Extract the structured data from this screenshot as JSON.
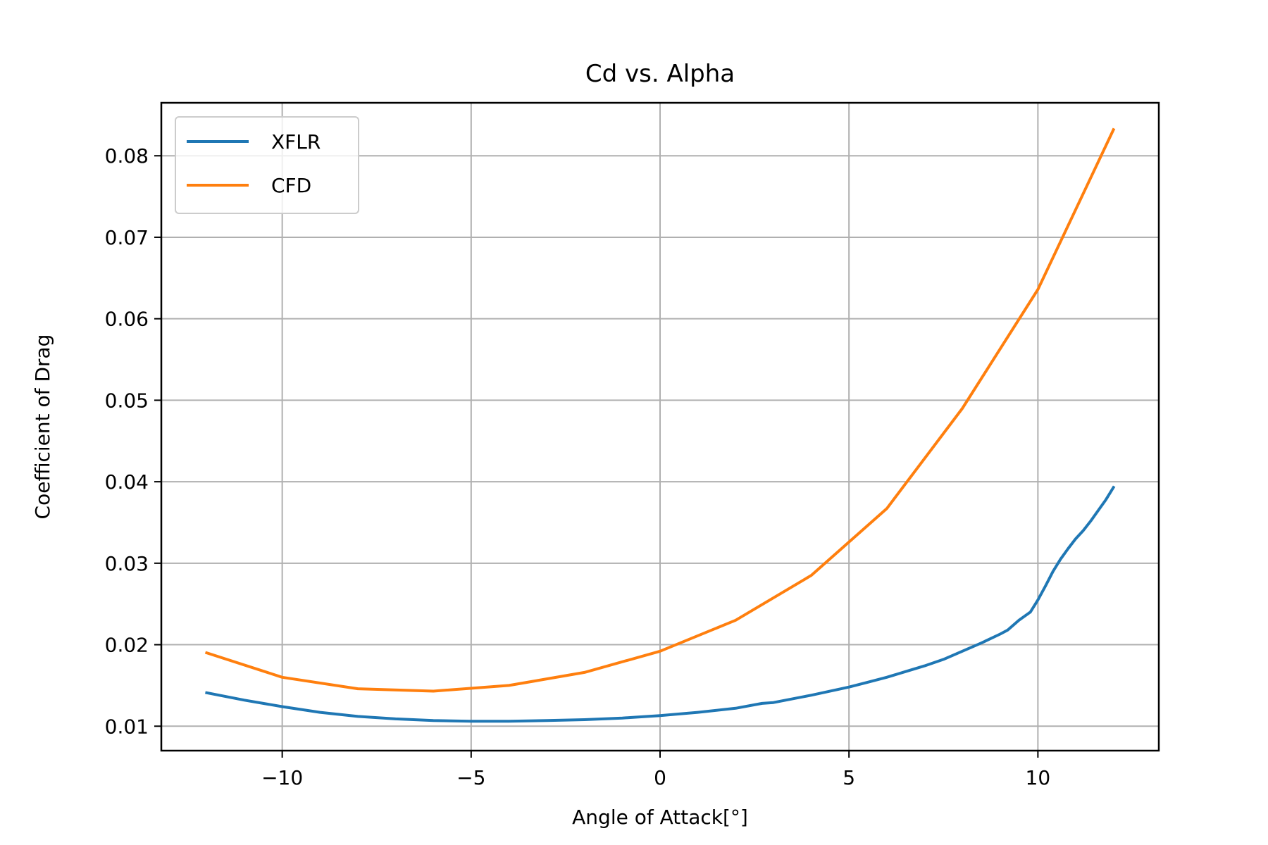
{
  "chart_data": {
    "type": "line",
    "title": "Cd vs. Alpha",
    "xlabel": "Angle of Attack[°]",
    "ylabel": "Coefficient of Drag",
    "xlim": [
      -13.2,
      13.2
    ],
    "ylim": [
      0.007,
      0.0865
    ],
    "xticks": [
      -10,
      -5,
      0,
      5,
      10
    ],
    "xtick_labels": [
      "−10",
      "−5",
      "0",
      "5",
      "10"
    ],
    "yticks": [
      0.01,
      0.02,
      0.03,
      0.04,
      0.05,
      0.06,
      0.07,
      0.08
    ],
    "ytick_labels": [
      "0.01",
      "0.02",
      "0.03",
      "0.04",
      "0.05",
      "0.06",
      "0.07",
      "0.08"
    ],
    "grid": true,
    "legend_position": "top-left",
    "series": [
      {
        "name": "XFLR",
        "color": "#1f77b4",
        "x": [
          -12,
          -11,
          -10,
          -9,
          -8,
          -7,
          -6,
          -5,
          -4,
          -3,
          -2,
          -1,
          0,
          1,
          2,
          2.7,
          3,
          4,
          5,
          5.5,
          6,
          6.5,
          7,
          7.5,
          8,
          8.5,
          9,
          9.2,
          9.5,
          9.8,
          10,
          10.2,
          10.4,
          10.6,
          10.8,
          11,
          11.2,
          11.4,
          11.6,
          11.8,
          12
        ],
        "y": [
          0.0141,
          0.0132,
          0.0124,
          0.0117,
          0.0112,
          0.0109,
          0.0107,
          0.0106,
          0.0106,
          0.0107,
          0.0108,
          0.011,
          0.0113,
          0.0117,
          0.0122,
          0.0128,
          0.0129,
          0.0138,
          0.0148,
          0.0154,
          0.016,
          0.0167,
          0.0174,
          0.0182,
          0.0192,
          0.0202,
          0.0213,
          0.0218,
          0.023,
          0.024,
          0.0255,
          0.0272,
          0.029,
          0.0305,
          0.0318,
          0.033,
          0.034,
          0.0352,
          0.0365,
          0.0378,
          0.0393
        ]
      },
      {
        "name": "CFD",
        "color": "#ff7f0e",
        "x": [
          -12,
          -10,
          -8,
          -6,
          -4,
          -2,
          0,
          2,
          4,
          6,
          8,
          10,
          12
        ],
        "y": [
          0.019,
          0.016,
          0.0146,
          0.0143,
          0.015,
          0.0166,
          0.0192,
          0.023,
          0.0285,
          0.0367,
          0.049,
          0.0636,
          0.0832
        ]
      }
    ]
  }
}
